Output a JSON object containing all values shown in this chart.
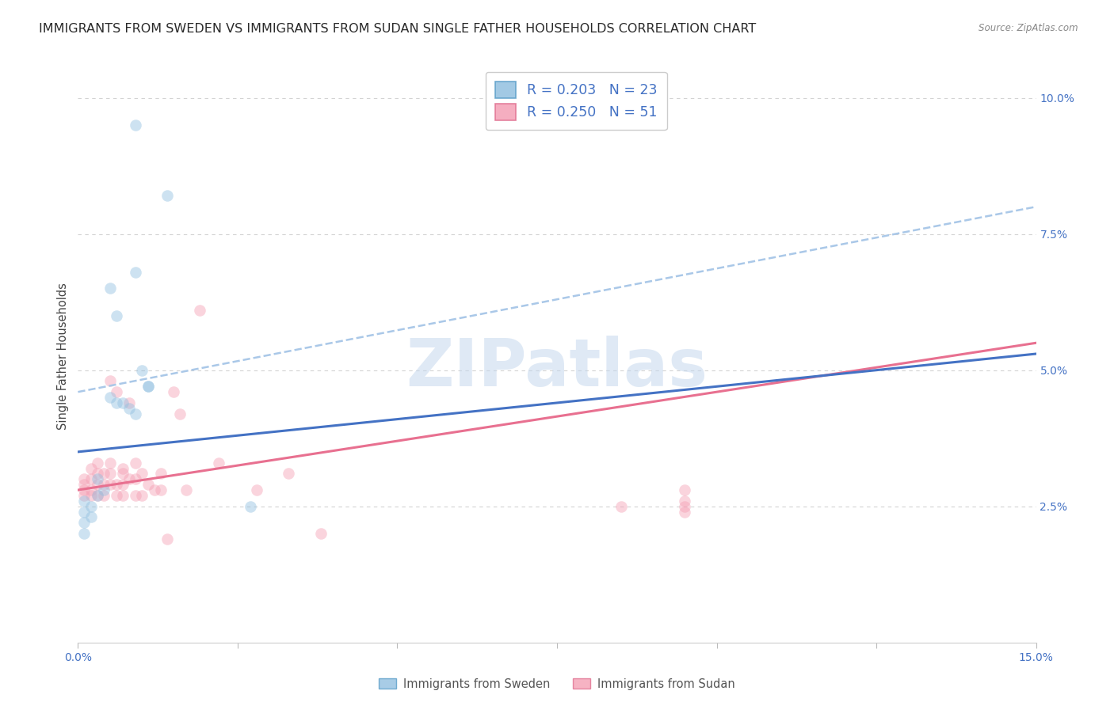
{
  "title": "IMMIGRANTS FROM SWEDEN VS IMMIGRANTS FROM SUDAN SINGLE FATHER HOUSEHOLDS CORRELATION CHART",
  "source": "Source: ZipAtlas.com",
  "ylabel": "Single Father Households",
  "xlim": [
    0.0,
    0.15
  ],
  "ylim": [
    0.0,
    0.105
  ],
  "xtick_positions": [
    0.0,
    0.025,
    0.05,
    0.075,
    0.1,
    0.125,
    0.15
  ],
  "xtick_labels": [
    "0.0%",
    "",
    "",
    "",
    "",
    "",
    "15.0%"
  ],
  "yticks_right": [
    0.025,
    0.05,
    0.075,
    0.1
  ],
  "ytick_labels_right": [
    "2.5%",
    "5.0%",
    "7.5%",
    "10.0%"
  ],
  "sweden_color": "#92c0e0",
  "sudan_color": "#f4a0b5",
  "sweden_R": 0.203,
  "sweden_N": 23,
  "sudan_R": 0.25,
  "sudan_N": 51,
  "sweden_line_color": "#4472c4",
  "sudan_line_color": "#e87090",
  "dashed_line_color": "#aac8e8",
  "sweden_line_x0": 0.0,
  "sweden_line_x1": 0.15,
  "sweden_line_y0": 0.035,
  "sweden_line_y1": 0.053,
  "sudan_line_y0": 0.028,
  "sudan_line_y1": 0.055,
  "dashed_line_y0": 0.046,
  "dashed_line_y1": 0.08,
  "sweden_scatter_x": [
    0.009,
    0.014,
    0.009,
    0.005,
    0.006,
    0.01,
    0.011,
    0.005,
    0.006,
    0.007,
    0.008,
    0.009,
    0.011,
    0.002,
    0.003,
    0.003,
    0.004,
    0.001,
    0.001,
    0.002,
    0.001,
    0.001,
    0.027
  ],
  "sweden_scatter_y": [
    0.095,
    0.082,
    0.068,
    0.065,
    0.06,
    0.05,
    0.047,
    0.045,
    0.044,
    0.044,
    0.043,
    0.042,
    0.047,
    0.025,
    0.03,
    0.027,
    0.028,
    0.026,
    0.024,
    0.023,
    0.022,
    0.02,
    0.025
  ],
  "sudan_scatter_x": [
    0.001,
    0.001,
    0.001,
    0.001,
    0.002,
    0.002,
    0.002,
    0.002,
    0.003,
    0.003,
    0.003,
    0.003,
    0.004,
    0.004,
    0.004,
    0.005,
    0.005,
    0.005,
    0.005,
    0.006,
    0.006,
    0.006,
    0.007,
    0.007,
    0.007,
    0.007,
    0.008,
    0.008,
    0.009,
    0.009,
    0.009,
    0.01,
    0.01,
    0.011,
    0.012,
    0.013,
    0.013,
    0.014,
    0.015,
    0.016,
    0.017,
    0.019,
    0.022,
    0.028,
    0.033,
    0.038,
    0.085,
    0.095,
    0.095,
    0.095,
    0.095
  ],
  "sudan_scatter_y": [
    0.03,
    0.029,
    0.028,
    0.027,
    0.032,
    0.03,
    0.028,
    0.027,
    0.033,
    0.031,
    0.029,
    0.027,
    0.031,
    0.029,
    0.027,
    0.048,
    0.033,
    0.031,
    0.029,
    0.046,
    0.029,
    0.027,
    0.032,
    0.031,
    0.029,
    0.027,
    0.044,
    0.03,
    0.033,
    0.03,
    0.027,
    0.031,
    0.027,
    0.029,
    0.028,
    0.031,
    0.028,
    0.019,
    0.046,
    0.042,
    0.028,
    0.061,
    0.033,
    0.028,
    0.031,
    0.02,
    0.025,
    0.028,
    0.026,
    0.025,
    0.024
  ],
  "watermark_text": "ZIPatlas",
  "watermark_color": "#c5d8ee",
  "bg_color": "#ffffff",
  "grid_color": "#d3d3d3",
  "title_color": "#2a2a2a",
  "title_fontsize": 11.5,
  "source_color": "#888888",
  "tick_color": "#4472c4",
  "tick_fontsize": 10,
  "scatter_size": 110,
  "scatter_alpha": 0.45,
  "legend_sweden_label": "R = 0.203   N = 23",
  "legend_sudan_label": "R = 0.250   N = 51",
  "bottom_legend_sweden": "Immigrants from Sweden",
  "bottom_legend_sudan": "Immigrants from Sudan"
}
